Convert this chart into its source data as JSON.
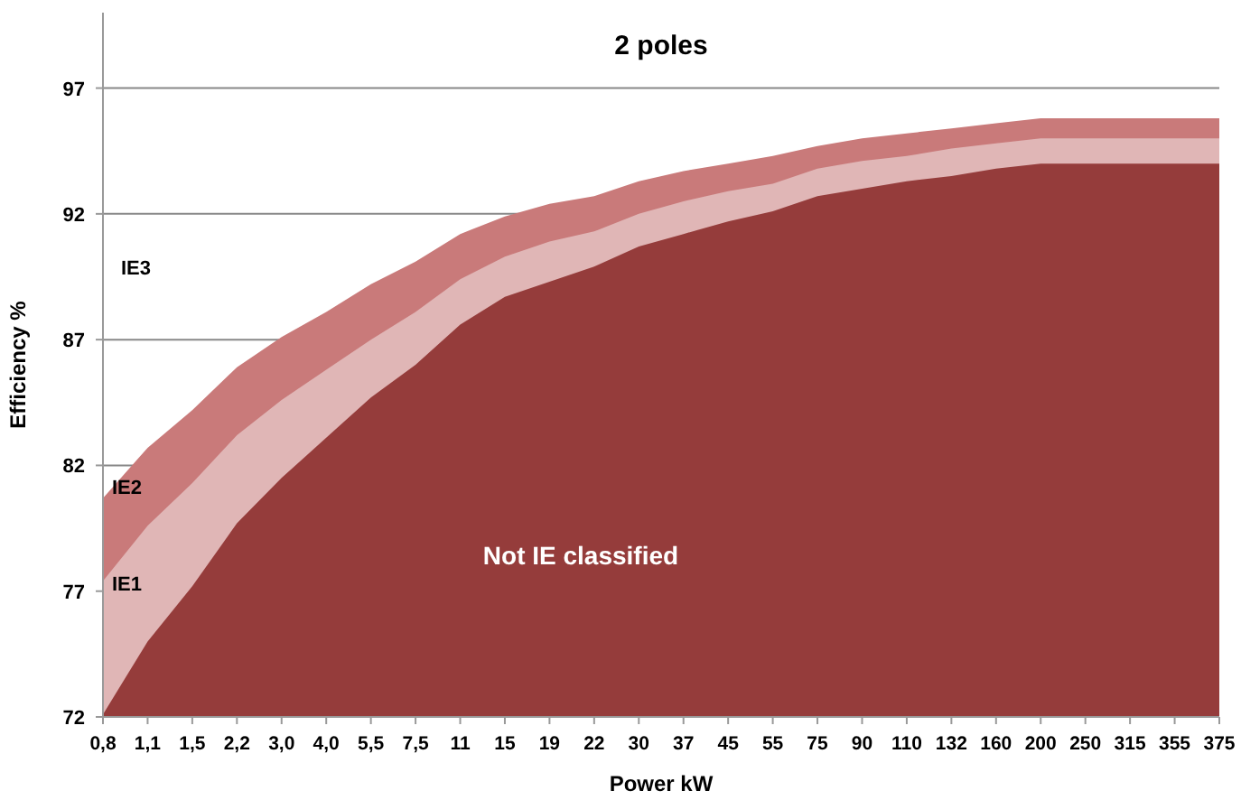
{
  "chart_data": {
    "type": "area",
    "title": "2 poles",
    "xlabel": "Power kW",
    "ylabel": "Efficiency %",
    "categories": [
      "0,8",
      "1,1",
      "1,5",
      "2,2",
      "3,0",
      "4,0",
      "5,5",
      "7,5",
      "11",
      "15",
      "19",
      "22",
      "30",
      "37",
      "45",
      "55",
      "75",
      "90",
      "110",
      "132",
      "160",
      "200",
      "250",
      "315",
      "355",
      "375"
    ],
    "series": [
      {
        "name": "IE2",
        "color": "#c97a7a",
        "values": [
          80.7,
          82.7,
          84.2,
          85.9,
          87.1,
          88.1,
          89.2,
          90.1,
          91.2,
          91.9,
          92.4,
          92.7,
          93.3,
          93.7,
          94.0,
          94.3,
          94.7,
          95.0,
          95.2,
          95.4,
          95.6,
          95.8,
          95.8,
          95.8,
          95.8,
          95.8
        ]
      },
      {
        "name": "IE1",
        "color": "#e0b6b6",
        "values": [
          77.4,
          79.6,
          81.3,
          83.2,
          84.6,
          85.8,
          87.0,
          88.1,
          89.4,
          90.3,
          90.9,
          91.3,
          92.0,
          92.5,
          92.9,
          93.2,
          93.8,
          94.1,
          94.3,
          94.6,
          94.8,
          95.0,
          95.0,
          95.0,
          95.0,
          95.0
        ]
      },
      {
        "name": "Not IE classified",
        "color": "#953c3b",
        "values": [
          72.1,
          75.0,
          77.2,
          79.7,
          81.5,
          83.1,
          84.7,
          86.0,
          87.6,
          88.7,
          89.3,
          89.9,
          90.7,
          91.2,
          91.7,
          92.1,
          92.7,
          93.0,
          93.3,
          93.5,
          93.8,
          94.0,
          94.0,
          94.0,
          94.0,
          94.0
        ]
      }
    ],
    "annotations": [
      "IE3"
    ],
    "ylim": [
      72,
      100
    ],
    "yticks": [
      72,
      77,
      82,
      87,
      92,
      97
    ],
    "grid": "y"
  }
}
